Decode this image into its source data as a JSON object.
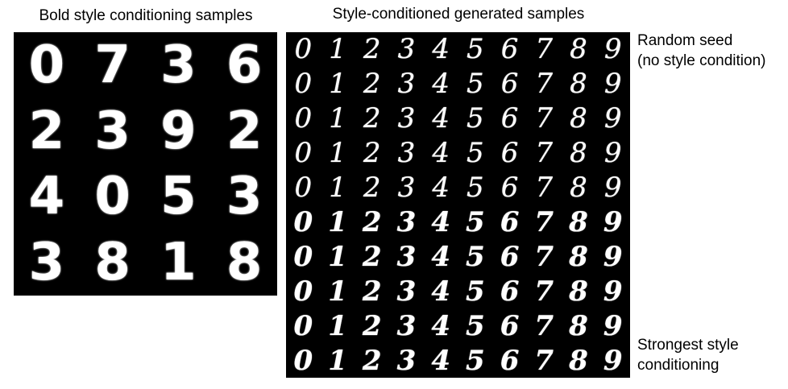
{
  "conditioning": {
    "title": "Bold style conditioning samples",
    "digits": [
      "0",
      "7",
      "3",
      "6",
      "2",
      "3",
      "9",
      "2",
      "4",
      "0",
      "5",
      "3",
      "3",
      "8",
      "1",
      "8"
    ]
  },
  "generated": {
    "title": "Style-conditioned generated samples",
    "rows": 10,
    "row_digits": [
      "0",
      "1",
      "2",
      "3",
      "4",
      "5",
      "6",
      "7",
      "8",
      "9"
    ]
  },
  "labels": {
    "top_line1": "Random seed",
    "top_line2": "(no style condition)",
    "bottom_line1": "Strongest style",
    "bottom_line2": "conditioning"
  }
}
